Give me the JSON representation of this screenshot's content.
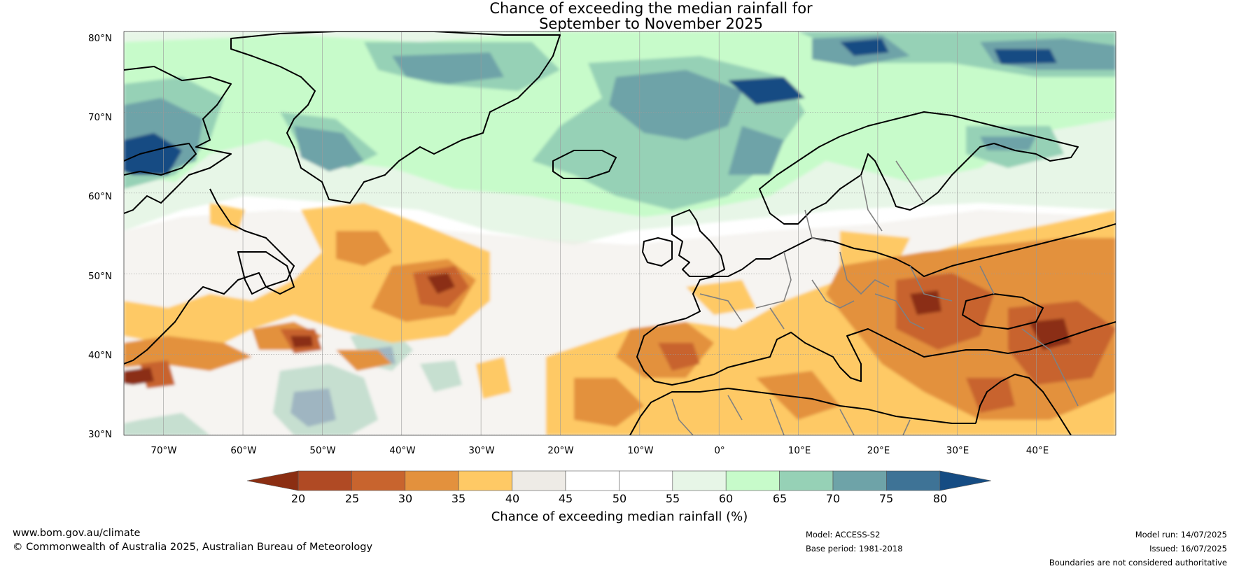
{
  "title": {
    "line1": "Chance of exceeding the median rainfall for",
    "line2": "September to November 2025"
  },
  "map": {
    "lat_range": [
      30,
      80
    ],
    "lon_range": [
      -75,
      50
    ],
    "lat_labels": [
      "80°N",
      "70°N",
      "60°N",
      "50°N",
      "40°N",
      "30°N"
    ],
    "lon_labels": [
      "70°W",
      "60°W",
      "50°W",
      "40°W",
      "30°W",
      "20°W",
      "10°W",
      "0°",
      "10°E",
      "20°E",
      "30°E",
      "40°E"
    ],
    "gridlines": true,
    "ocean_color": "#ffffff",
    "coastline_color": "#000000",
    "border_color": "#808080"
  },
  "colorbar": {
    "ticks": [
      "20",
      "25",
      "30",
      "35",
      "40",
      "45",
      "50",
      "55",
      "60",
      "65",
      "70",
      "75",
      "80"
    ],
    "colors": {
      "below_20": "#8b2e12",
      "20-25": "#b04a24",
      "25-30": "#c8642e",
      "30-35": "#e3913d",
      "35-40": "#fec965",
      "40-45": "#eeebe6",
      "45-50": "#ffffff",
      "50-55": "#ffffff",
      "55-60": "#e7f6e7",
      "60-65": "#c7fbca",
      "65-70": "#96d1b6",
      "70-75": "#6ea3a8",
      "75-80": "#3e7396",
      "above_80": "#154c83"
    },
    "label": "Chance of exceeding median rainfall (%)"
  },
  "footer": {
    "website": "www.bom.gov.au/climate",
    "copyright": "© Commonwealth of Australia 2025, Australian Bureau of Meteorology",
    "model": "Model: ACCESS-S2",
    "base_period": "Base period: 1981-2018",
    "model_run": "Model run: 14/07/2025",
    "issued": "Issued: 16/07/2025",
    "disclaimer": "Boundaries are not considered authoritative"
  }
}
